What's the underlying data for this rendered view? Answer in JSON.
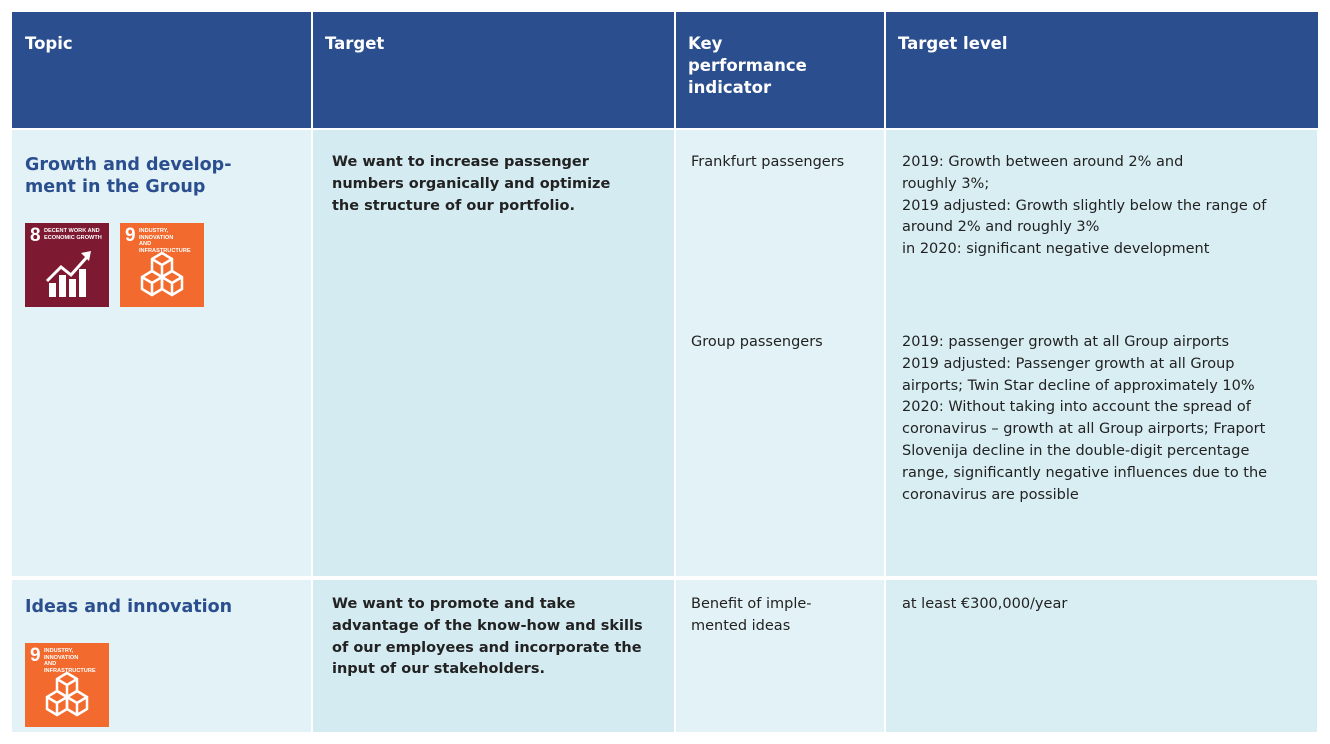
{
  "header": [
    [
      "Topic"
    ],
    [
      "Target"
    ],
    [
      "Key",
      "performance",
      "indicator"
    ],
    [
      "Target level"
    ]
  ],
  "rows": [
    {
      "topic": [
        "Growth and develop-",
        "ment in the Group"
      ],
      "icons": [
        {
          "number": "8",
          "label": [
            "DECENT WORK AND",
            "ECONOMIC GROWTH"
          ]
        },
        {
          "number": "9",
          "label": [
            "INDUSTRY, INNOVATION",
            "AND INFRASTRUCTURE"
          ]
        }
      ],
      "target": [
        "We want to increase passenger",
        "numbers organically and optimize",
        "the structure of our portfolio."
      ],
      "kpis": [
        {
          "indicator": [
            "Frankfurt passengers"
          ],
          "level": [
            "2019: Growth between around 2% and",
            "roughly 3%;",
            "2019 adjusted: Growth slightly below the range of",
            "around 2% and roughly 3%",
            "in 2020: significant negative development"
          ]
        },
        {
          "indicator": [
            "Group passengers"
          ],
          "level": [
            "2019: passenger growth at all Group airports",
            "2019 adjusted: Passenger growth at all Group",
            "airports; Twin Star decline of approximately 10%",
            "2020: Without taking into account the spread of",
            "coronavirus – growth at all Group airports; Fraport",
            "Slovenija decline in the double-digit percentage",
            "range, significantly negative influences due to the",
            "coronavirus are possible"
          ]
        }
      ]
    },
    {
      "topic": [
        "Ideas and innovation"
      ],
      "icons": [
        {
          "number": "9",
          "label": [
            "INDUSTRY, INNOVATION",
            "AND INFRASTRUCTURE"
          ]
        }
      ],
      "target": [
        "We want to promote and take",
        "advantage of the know-how and skills",
        "of our employees and incorporate the",
        "input of our stakeholders."
      ],
      "kpis": [
        {
          "indicator": [
            "Benefit of imple-",
            "mented ideas"
          ],
          "level": [
            "at least €300,000/year"
          ]
        }
      ]
    }
  ]
}
